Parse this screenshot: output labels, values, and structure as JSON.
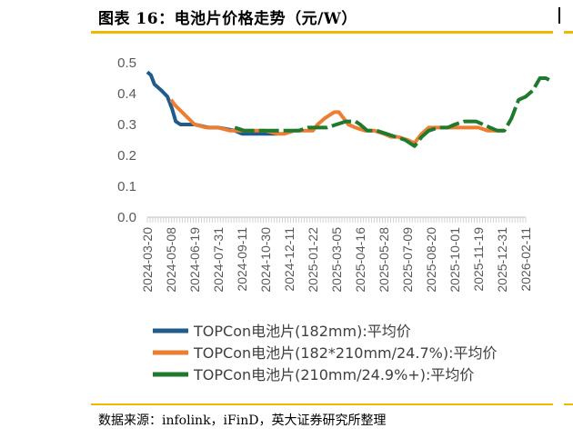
{
  "title": "图表 16：电池片价格走势（元/W）",
  "source": "数据来源：infolink，iFinD，英大证券研究所整理",
  "chart_data": {
    "type": "line",
    "title": "图表 16：电池片价格走势（元/W）",
    "xlabel": "",
    "ylabel": "",
    "ylim": [
      0,
      0.5
    ],
    "yticks": [
      "0.0",
      "0.1",
      "0.2",
      "0.3",
      "0.4",
      "0.5"
    ],
    "grid": false,
    "legend_position": "bottom",
    "x_ticks": [
      "2024-03-20",
      "2024-05-08",
      "2024-06-19",
      "2024-07-31",
      "2024-09-11",
      "2024-10-30",
      "2024-12-11",
      "2025-01-22",
      "2025-03-05",
      "2025-04-16",
      "2025-05-28",
      "2025-07-09",
      "2025-08-20",
      "2025-10-01",
      "2025-11-19",
      "2025-12-31",
      "2026-02-11"
    ],
    "series": [
      {
        "name": "TOPCon电池片(182mm):平均价",
        "color": "#1f5c8b",
        "dashed": false,
        "points": [
          [
            0,
            0.47
          ],
          [
            0.15,
            0.46
          ],
          [
            0.3,
            0.43
          ],
          [
            0.6,
            0.41
          ],
          [
            0.85,
            0.39
          ],
          [
            1.05,
            0.35
          ],
          [
            1.2,
            0.31
          ],
          [
            1.4,
            0.3
          ],
          [
            2.0,
            0.3
          ],
          [
            2.6,
            0.29
          ],
          [
            3.0,
            0.29
          ],
          [
            3.7,
            0.28
          ],
          [
            4.0,
            0.27
          ],
          [
            4.5,
            0.27
          ],
          [
            5.0,
            0.27
          ],
          [
            5.5,
            0.27
          ]
        ]
      },
      {
        "name": "TOPCon电池片(182*210mm/24.7%):平均价",
        "color": "#ed7d31",
        "dashed": false,
        "points": [
          [
            1.0,
            0.38
          ],
          [
            1.2,
            0.36
          ],
          [
            1.6,
            0.33
          ],
          [
            2.0,
            0.3
          ],
          [
            2.5,
            0.29
          ],
          [
            3.0,
            0.29
          ],
          [
            3.5,
            0.28
          ],
          [
            4.0,
            0.28
          ],
          [
            4.5,
            0.28
          ],
          [
            5.0,
            0.28
          ],
          [
            5.5,
            0.27
          ],
          [
            5.8,
            0.27
          ],
          [
            6.2,
            0.28
          ],
          [
            6.6,
            0.28
          ],
          [
            7.0,
            0.28
          ],
          [
            7.2,
            0.3
          ],
          [
            7.5,
            0.32
          ],
          [
            7.9,
            0.34
          ],
          [
            8.1,
            0.34
          ],
          [
            8.3,
            0.32
          ],
          [
            8.5,
            0.3
          ],
          [
            8.8,
            0.29
          ],
          [
            9.2,
            0.28
          ],
          [
            9.6,
            0.28
          ],
          [
            10.0,
            0.27
          ],
          [
            10.3,
            0.26
          ],
          [
            10.6,
            0.26
          ],
          [
            11.0,
            0.25
          ],
          [
            11.3,
            0.24
          ],
          [
            11.6,
            0.27
          ],
          [
            11.9,
            0.29
          ],
          [
            12.2,
            0.29
          ],
          [
            12.6,
            0.29
          ],
          [
            13.0,
            0.29
          ],
          [
            13.6,
            0.29
          ],
          [
            14.0,
            0.29
          ],
          [
            14.4,
            0.28
          ],
          [
            14.8,
            0.28
          ],
          [
            15.1,
            0.28
          ]
        ]
      },
      {
        "name": "TOPCon电池片(210mm/24.9%+):平均价",
        "color": "#1f7a2e",
        "dashed": true,
        "points": [
          [
            3.7,
            0.29
          ],
          [
            4.1,
            0.28
          ],
          [
            4.5,
            0.28
          ],
          [
            5.0,
            0.28
          ],
          [
            5.5,
            0.28
          ],
          [
            6.0,
            0.28
          ],
          [
            6.4,
            0.28
          ],
          [
            6.8,
            0.29
          ],
          [
            7.2,
            0.29
          ],
          [
            7.6,
            0.29
          ],
          [
            8.0,
            0.3
          ],
          [
            8.4,
            0.31
          ],
          [
            8.8,
            0.31
          ],
          [
            9.0,
            0.3
          ],
          [
            9.3,
            0.28
          ],
          [
            9.7,
            0.28
          ],
          [
            10.1,
            0.27
          ],
          [
            10.5,
            0.26
          ],
          [
            10.9,
            0.25
          ],
          [
            11.3,
            0.23
          ],
          [
            11.6,
            0.26
          ],
          [
            11.9,
            0.28
          ],
          [
            12.3,
            0.29
          ],
          [
            12.7,
            0.29
          ],
          [
            13.0,
            0.3
          ],
          [
            13.4,
            0.31
          ],
          [
            13.6,
            0.31
          ],
          [
            13.9,
            0.31
          ],
          [
            14.2,
            0.3
          ],
          [
            14.5,
            0.29
          ],
          [
            14.8,
            0.28
          ],
          [
            15.1,
            0.28
          ],
          [
            15.4,
            0.32
          ],
          [
            15.7,
            0.38
          ],
          [
            16.0,
            0.39
          ],
          [
            16.3,
            0.41
          ],
          [
            16.6,
            0.45
          ],
          [
            16.85,
            0.45
          ],
          [
            17.1,
            0.44
          ]
        ]
      }
    ]
  }
}
